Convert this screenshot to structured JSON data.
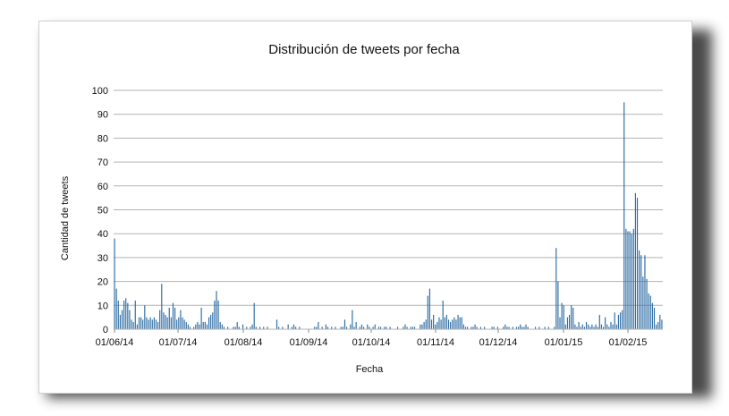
{
  "chart_data": {
    "type": "bar",
    "title": "Distribución de tweets por fecha",
    "xlabel": "Fecha",
    "ylabel": "Cantidad de tweets",
    "ylim": [
      0,
      100
    ],
    "y_ticks": [
      "0",
      "10",
      "20",
      "30",
      "40",
      "50",
      "60",
      "70",
      "80",
      "90",
      "100"
    ],
    "x_ticks": [
      "01/06/14",
      "01/07/14",
      "01/08/14",
      "01/09/14",
      "01/10/14",
      "01/11/14",
      "01/12/14",
      "01/01/15",
      "01/02/15"
    ],
    "x_start": "01/06/14",
    "x_end": "22/02/15",
    "bar_color": "#2e6da4",
    "grid": true,
    "values": [
      38,
      17,
      12,
      6,
      8,
      12,
      13,
      11,
      8,
      4,
      3,
      12,
      2,
      5,
      5,
      4,
      10,
      5,
      4,
      5,
      4,
      5,
      4,
      3,
      8,
      19,
      7,
      6,
      5,
      9,
      5,
      11,
      9,
      4,
      5,
      8,
      5,
      4,
      3,
      2,
      1,
      0,
      1,
      2,
      3,
      2,
      9,
      3,
      3,
      2,
      5,
      6,
      7,
      12,
      16,
      12,
      3,
      2,
      1,
      0,
      1,
      0,
      0,
      1,
      1,
      3,
      1,
      0,
      2,
      0,
      1,
      0,
      1,
      2,
      11,
      1,
      0,
      1,
      0,
      1,
      0,
      1,
      0,
      0,
      0,
      0,
      4,
      1,
      0,
      1,
      0,
      0,
      2,
      0,
      1,
      2,
      1,
      0,
      1,
      0,
      0,
      0,
      0,
      0,
      0,
      0,
      1,
      1,
      3,
      0,
      1,
      0,
      2,
      1,
      0,
      1,
      0,
      1,
      0,
      0,
      1,
      1,
      4,
      1,
      0,
      2,
      8,
      1,
      3,
      0,
      1,
      2,
      1,
      0,
      2,
      1,
      0,
      1,
      2,
      0,
      1,
      1,
      0,
      1,
      1,
      0,
      1,
      0,
      0,
      0,
      1,
      0,
      0,
      1,
      2,
      1,
      0,
      1,
      1,
      1,
      0,
      0,
      2,
      2,
      3,
      4,
      14,
      17,
      4,
      6,
      2,
      3,
      5,
      4,
      12,
      5,
      6,
      4,
      3,
      4,
      5,
      4,
      6,
      5,
      5,
      2,
      1,
      1,
      0,
      1,
      1,
      2,
      1,
      0,
      1,
      0,
      1,
      0,
      0,
      0,
      1,
      1,
      0,
      1,
      0,
      0,
      1,
      2,
      1,
      1,
      0,
      1,
      0,
      1,
      1,
      2,
      1,
      1,
      2,
      1,
      0,
      0,
      0,
      1,
      0,
      1,
      0,
      0,
      1,
      0,
      1,
      0,
      0,
      1,
      34,
      20,
      5,
      11,
      10,
      2,
      5,
      6,
      10,
      9,
      2,
      1,
      3,
      1,
      2,
      1,
      3,
      2,
      1,
      2,
      1,
      2,
      1,
      6,
      2,
      1,
      5,
      2,
      1,
      3,
      2,
      7,
      2,
      6,
      7,
      8,
      95,
      42,
      41,
      41,
      40,
      42,
      57,
      55,
      33,
      31,
      22,
      31,
      21,
      15,
      14,
      11,
      9,
      2,
      3,
      6,
      4
    ]
  }
}
